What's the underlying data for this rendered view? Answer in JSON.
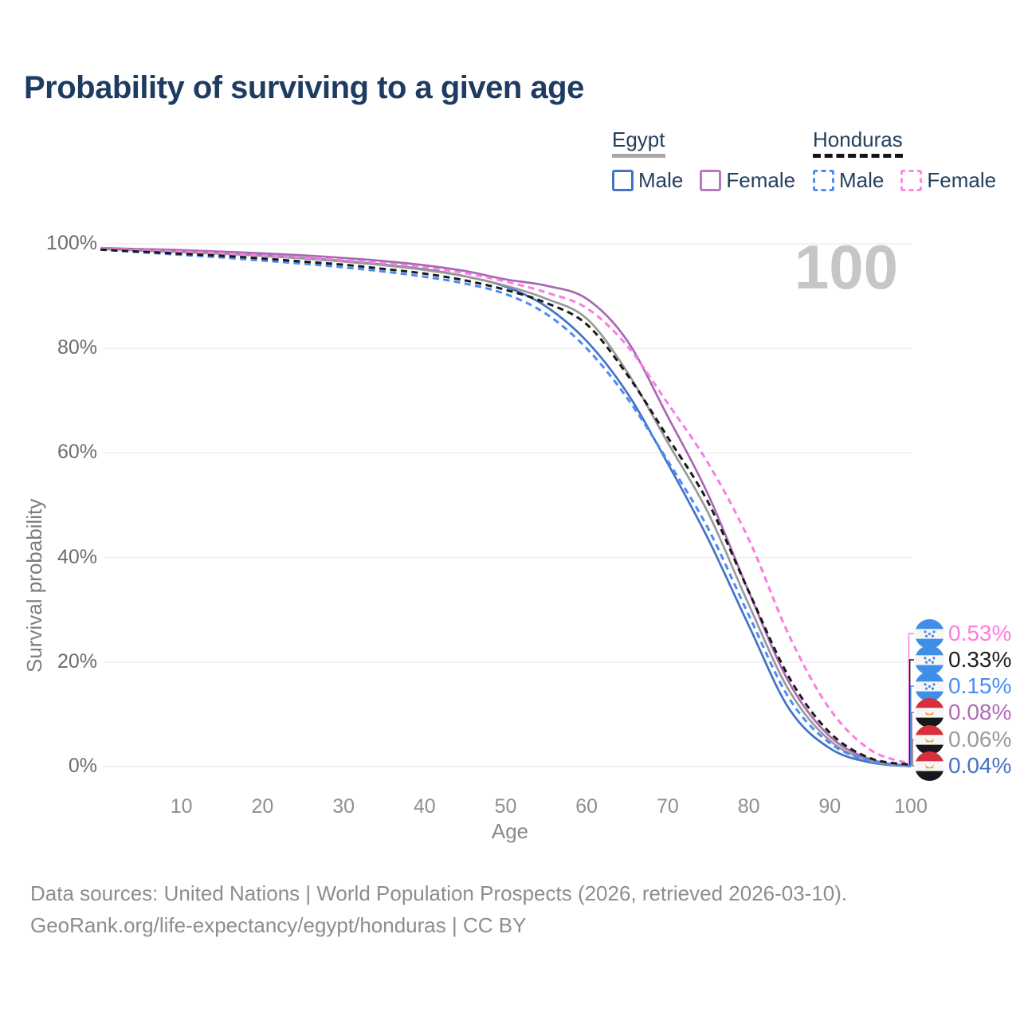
{
  "page": {
    "title": "Probability of surviving to a given age"
  },
  "watermark": {
    "age_counter": "100"
  },
  "legend": {
    "groups": [
      {
        "country": "Egypt",
        "underline": "solid",
        "underline_color": "#a8a8a8",
        "items": [
          {
            "label": "Male",
            "color": "#4472c4",
            "dashed": false
          },
          {
            "label": "Female",
            "color": "#b978bd",
            "dashed": false
          }
        ]
      },
      {
        "country": "Honduras",
        "underline": "dashed",
        "underline_color": "#141414",
        "items": [
          {
            "label": "Male",
            "color": "#4a8cf7",
            "dashed": true
          },
          {
            "label": "Female",
            "color": "#fb87e3",
            "dashed": true
          }
        ]
      }
    ]
  },
  "chart_data": {
    "type": "line",
    "title": "Probability of surviving to a given age",
    "xlabel": "Age",
    "ylabel": "Survival probability",
    "xlim": [
      0,
      100
    ],
    "ylim": [
      0,
      100
    ],
    "x_ticks": [
      10,
      20,
      30,
      40,
      50,
      60,
      70,
      80,
      90,
      100
    ],
    "y_ticks": [
      0,
      20,
      40,
      60,
      80,
      100
    ],
    "y_tick_labels": [
      "0%",
      "20%",
      "40%",
      "60%",
      "80%",
      "100%"
    ],
    "grid": "horizontal",
    "legend_position": "top-right",
    "ages": [
      0,
      5,
      10,
      15,
      20,
      25,
      30,
      35,
      40,
      45,
      50,
      55,
      60,
      65,
      70,
      75,
      80,
      85,
      90,
      95,
      100
    ],
    "series": [
      {
        "key": "egypt_male",
        "name": "Egypt Male",
        "color": "#4472c4",
        "dashed": false,
        "values": [
          99.1,
          98.8,
          98.5,
          98.2,
          97.8,
          97.3,
          96.7,
          96.0,
          95.1,
          93.8,
          91.8,
          88.0,
          81.4,
          71.5,
          58.0,
          43.5,
          27.0,
          11.0,
          3.5,
          0.8,
          0.04
        ]
      },
      {
        "key": "egypt_female",
        "name": "Egypt Female",
        "color": "#a968b2",
        "dashed": false,
        "values": [
          99.2,
          99.0,
          98.8,
          98.5,
          98.2,
          97.8,
          97.3,
          96.7,
          95.9,
          94.8,
          93.2,
          92.0,
          89.5,
          81.5,
          67.0,
          52.0,
          33.5,
          16.0,
          5.8,
          1.4,
          0.08
        ]
      },
      {
        "key": "egypt_both",
        "name": "Egypt",
        "color": "#9a9a9a",
        "dashed": false,
        "values": [
          99.0,
          98.7,
          98.4,
          98.1,
          97.7,
          97.2,
          96.6,
          95.9,
          95.0,
          93.8,
          92.0,
          89.5,
          85.7,
          75.5,
          62.0,
          48.5,
          31.0,
          14.5,
          5.0,
          1.1,
          0.06
        ]
      },
      {
        "key": "honduras_male",
        "name": "Honduras Male",
        "color": "#4a8cf7",
        "dashed": true,
        "values": [
          98.9,
          98.4,
          97.9,
          97.4,
          96.8,
          96.2,
          95.5,
          94.7,
          93.7,
          92.4,
          90.4,
          86.6,
          80.0,
          70.5,
          58.5,
          45.5,
          29.0,
          13.0,
          4.5,
          1.1,
          0.15
        ]
      },
      {
        "key": "honduras_female",
        "name": "Honduras Female",
        "color": "#fb7ce3",
        "dashed": true,
        "values": [
          99.1,
          98.8,
          98.5,
          98.2,
          97.8,
          97.4,
          96.9,
          96.3,
          95.5,
          94.4,
          92.8,
          90.7,
          87.7,
          80.5,
          69.5,
          58.0,
          43.5,
          25.0,
          11.0,
          3.2,
          0.53
        ]
      },
      {
        "key": "honduras_both",
        "name": "Honduras",
        "color": "#1a1a1a",
        "dashed": true,
        "values": [
          98.9,
          98.5,
          98.1,
          97.7,
          97.2,
          96.6,
          96.0,
          95.2,
          94.3,
          93.0,
          91.2,
          88.7,
          84.6,
          75.0,
          63.0,
          50.5,
          33.5,
          17.0,
          6.5,
          1.6,
          0.33
        ]
      }
    ],
    "end_labels": [
      {
        "flag": "honduras",
        "value": "0.53%",
        "color": "#ff7ce0",
        "series": "honduras_female"
      },
      {
        "flag": "honduras",
        "value": "0.33%",
        "color": "#1f1f1f",
        "series": "honduras_both"
      },
      {
        "flag": "honduras",
        "value": "0.15%",
        "color": "#4a8cf7",
        "series": "honduras_male"
      },
      {
        "flag": "egypt",
        "value": "0.08%",
        "color": "#b06ab8",
        "series": "egypt_female"
      },
      {
        "flag": "egypt",
        "value": "0.06%",
        "color": "#9a9a9a",
        "series": "egypt_both"
      },
      {
        "flag": "egypt",
        "value": "0.04%",
        "color": "#4472c4",
        "series": "egypt_male"
      }
    ]
  },
  "footer": {
    "line1": "Data sources: United Nations | World Population Prospects (2026, retrieved 2026-03-10).",
    "line2": "GeoRank.org/life-expectancy/egypt/honduras | CC BY"
  }
}
